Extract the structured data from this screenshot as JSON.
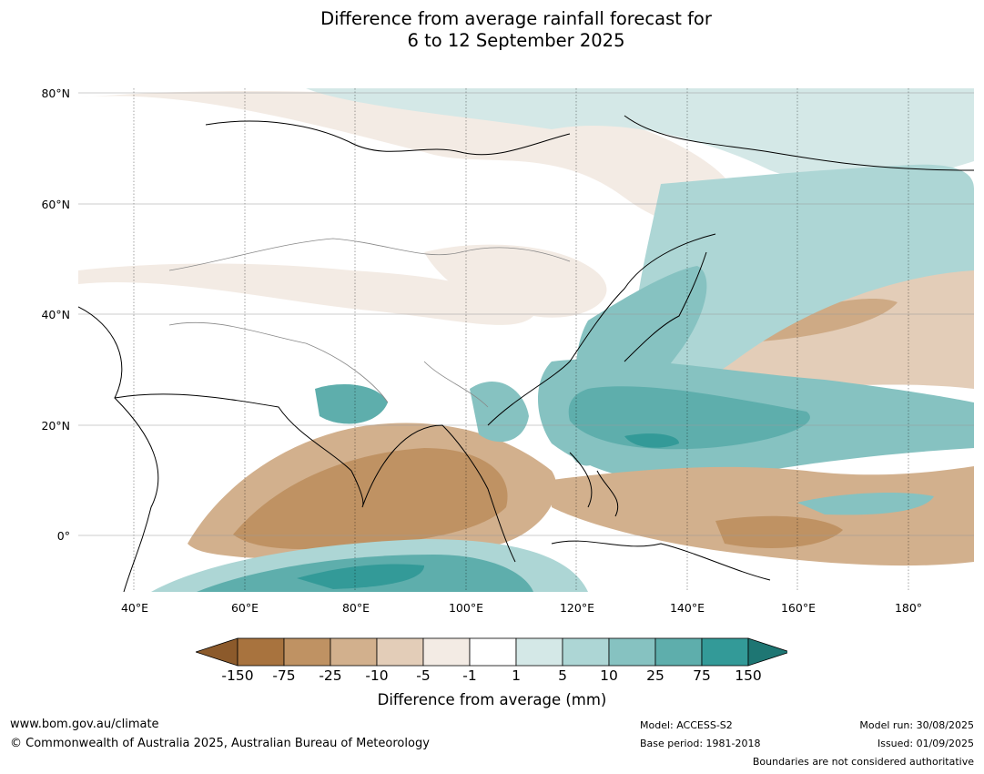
{
  "title": {
    "line1": "Difference from average rainfall forecast for",
    "line2": "6 to 12 September 2025"
  },
  "map": {
    "lat_labels": [
      "80°N",
      "60°N",
      "40°N",
      "20°N",
      "0°"
    ],
    "lon_labels": [
      "40°E",
      "60°E",
      "80°E",
      "100°E",
      "120°E",
      "140°E",
      "160°E",
      "180°"
    ],
    "grid": true
  },
  "legend": {
    "title": "Difference from average (mm)",
    "ticks": [
      "-150",
      "-75",
      "-25",
      "-10",
      "-5",
      "-1",
      "1",
      "5",
      "10",
      "25",
      "75",
      "150"
    ],
    "colors": [
      "#8c5a2b",
      "#a8733e",
      "#bf9263",
      "#d2b08d",
      "#e3cdb8",
      "#f3ebe4",
      "#ffffff",
      "#d4e8e7",
      "#add6d5",
      "#86c2c1",
      "#5eaeac",
      "#339a98",
      "#1e7673"
    ]
  },
  "footer": {
    "url": "www.bom.gov.au/climate",
    "copyright": "© Commonwealth of Australia 2025, Australian Bureau of Meteorology",
    "model": "Model: ACCESS-S2",
    "base_period": "Base period: 1981-2018",
    "model_run": "Model run: 30/08/2025",
    "issued": "Issued: 01/09/2025",
    "disclaimer": "Boundaries are not considered authoritative"
  }
}
